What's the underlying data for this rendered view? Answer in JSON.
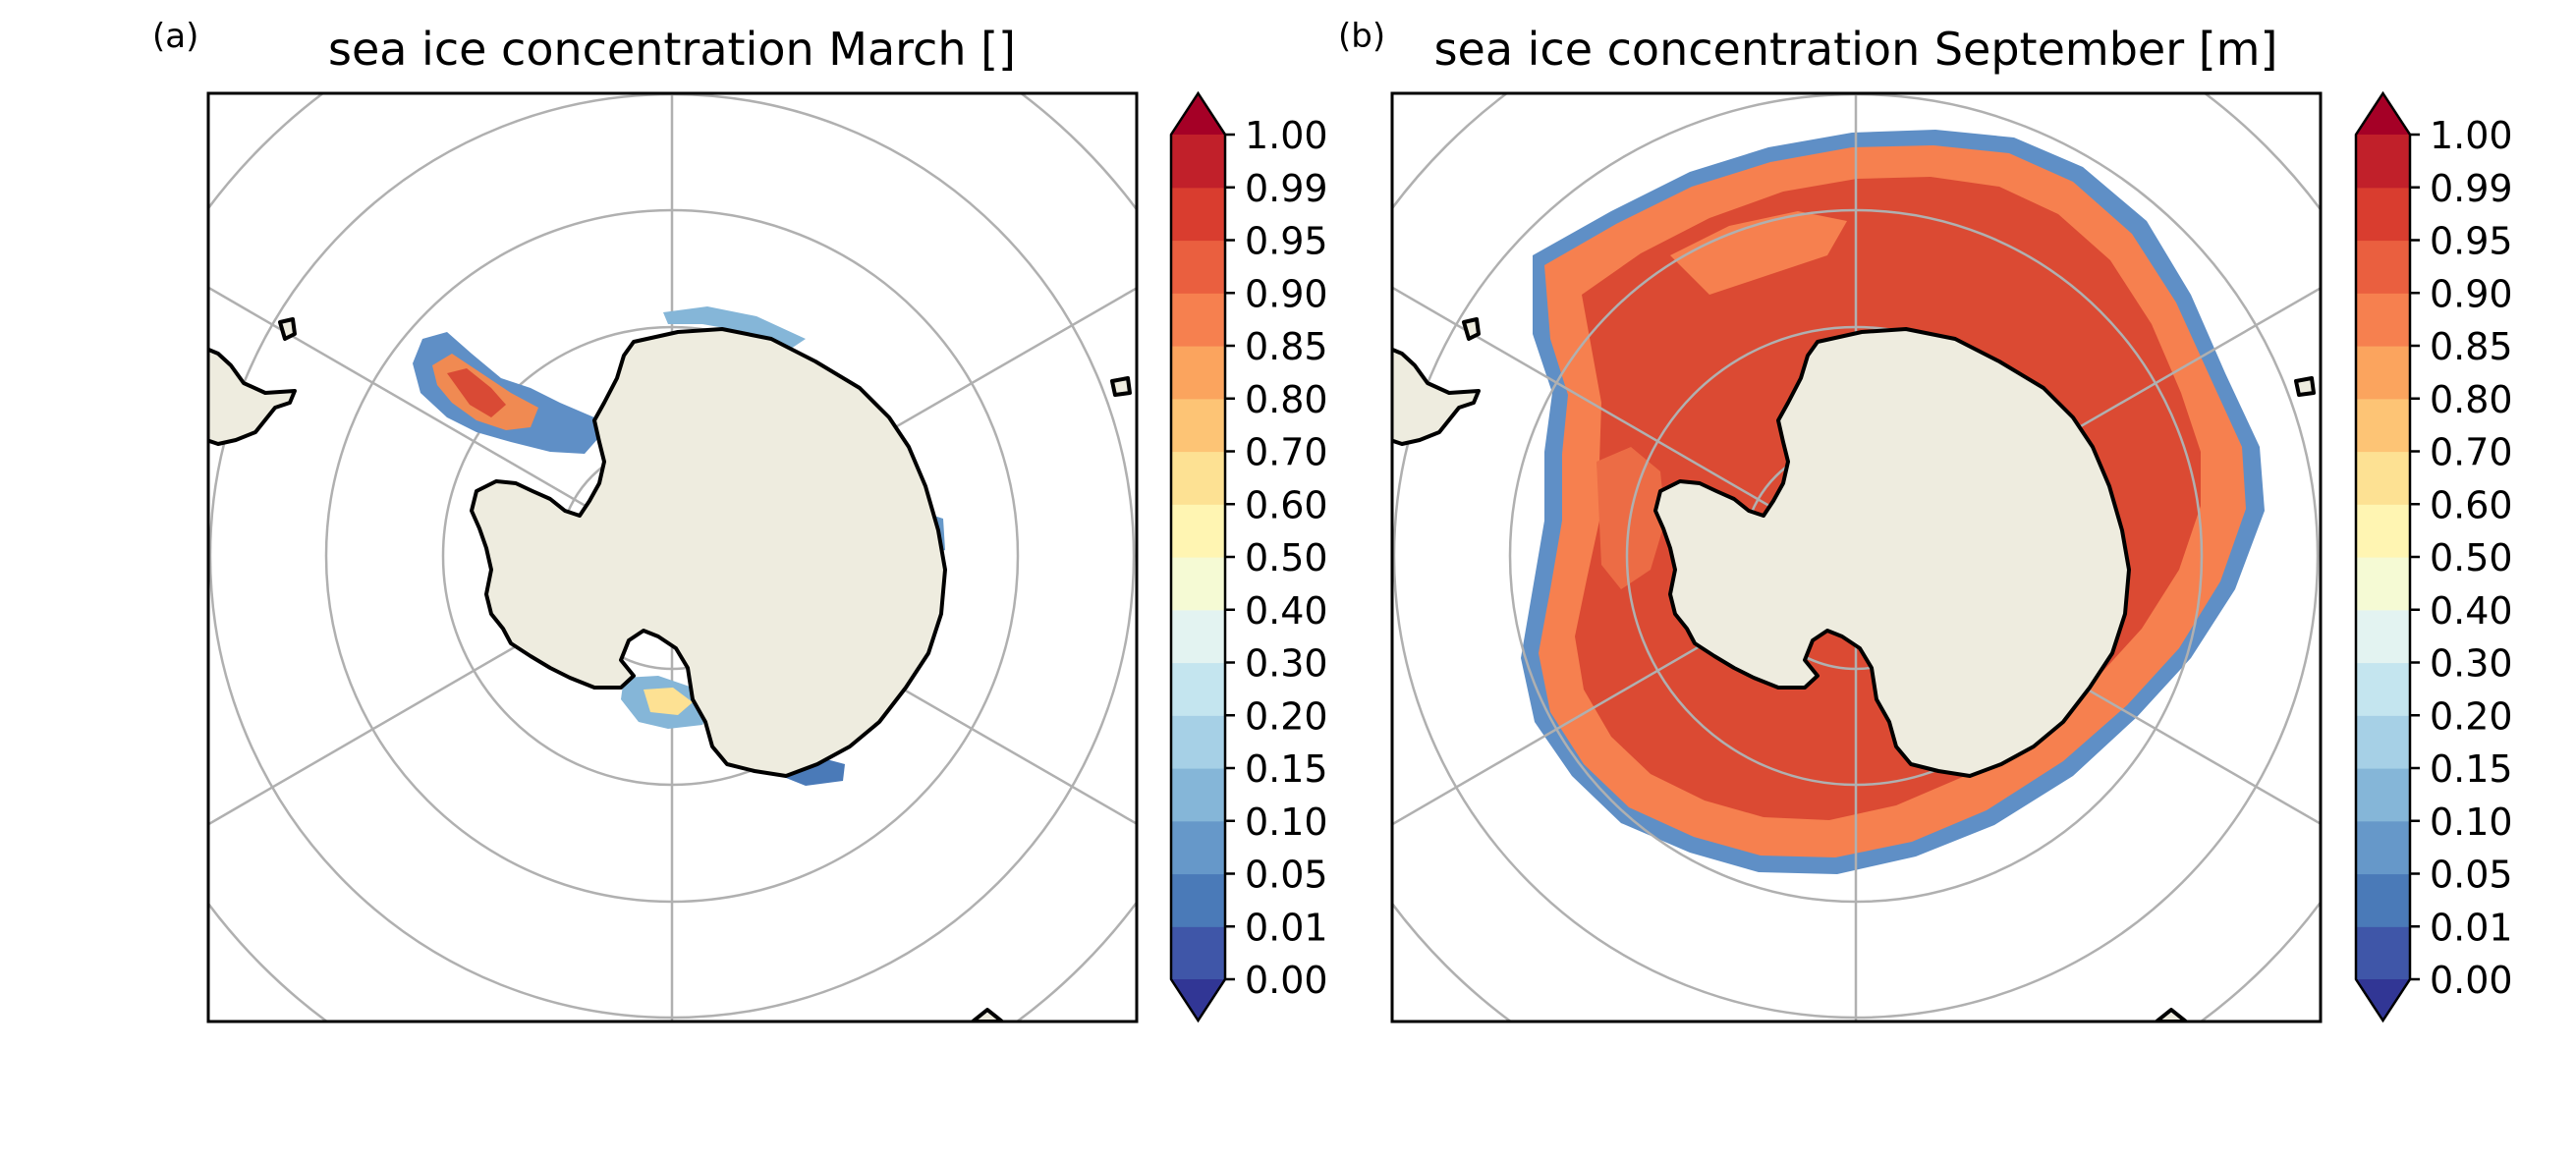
{
  "panels": [
    {
      "label": "(a)",
      "title": "sea ice concentration March []",
      "month": "March"
    },
    {
      "label": "(b)",
      "title": "sea ice concentration September [m]",
      "month": "September"
    }
  ],
  "colorbar": {
    "ticks": [
      "1.00",
      "0.99",
      "0.95",
      "0.90",
      "0.85",
      "0.80",
      "0.70",
      "0.60",
      "0.50",
      "0.40",
      "0.30",
      "0.20",
      "0.15",
      "0.10",
      "0.05",
      "0.01",
      "0.00"
    ],
    "colors_bottom_to_top": [
      "#3f56a8",
      "#4a7ab8",
      "#6698c9",
      "#85b6d8",
      "#a6d0e6",
      "#c4e5ef",
      "#e3f3f1",
      "#f5fad4",
      "#fff5b2",
      "#fde193",
      "#fdc475",
      "#fba45e",
      "#f6804f",
      "#ea5f3f",
      "#d93d2f",
      "#c1202a"
    ],
    "under_color": "#313695",
    "over_color": "#a50026"
  },
  "colors": {
    "land": "#eeecdf",
    "coast": "#000000",
    "gridlines": "#b0b0b0",
    "ice_pack": "#db4a33",
    "ice_mid": "#ec6c45",
    "ice_edge": "#5f8fc6"
  }
}
